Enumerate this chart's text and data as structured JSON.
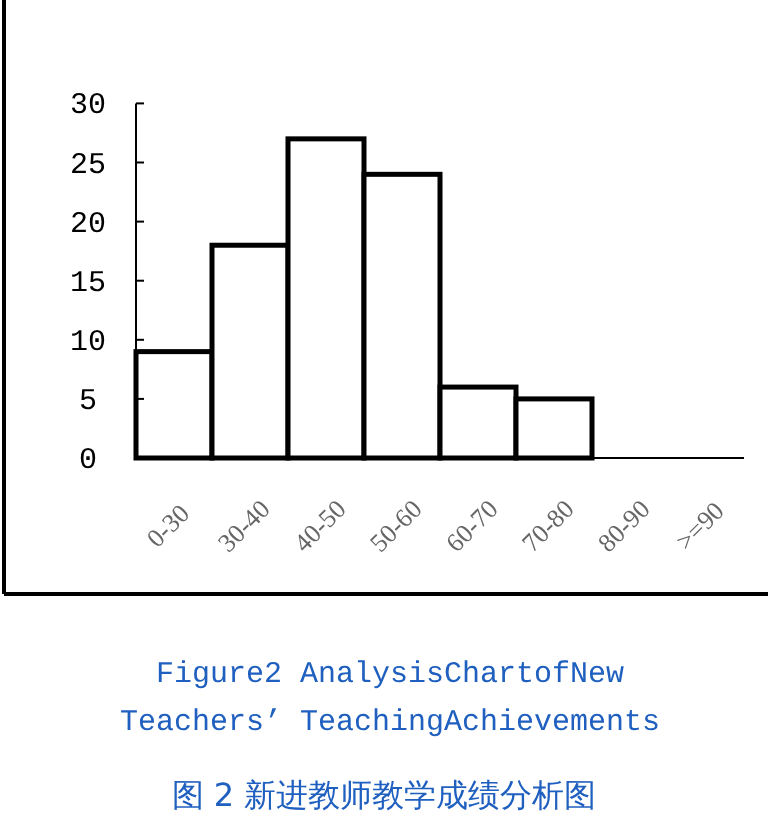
{
  "chart_data": {
    "type": "bar",
    "title": "Figure2 AnalysisChartofNew Teachers’ TeachingAchievements",
    "subtitle": "图 2 新进教师教学成绩分析图",
    "categories": [
      "0-30",
      "30-40",
      "40-50",
      "50-60",
      "60-70",
      "70-80",
      "80-90",
      ">=90"
    ],
    "values": [
      9,
      18,
      27,
      24,
      6,
      5,
      0,
      0
    ],
    "color": "#ffffff",
    "ylim": [
      0,
      30
    ],
    "yticks": [
      0,
      5,
      10,
      15,
      20,
      25,
      30
    ],
    "grid": false
  }
}
